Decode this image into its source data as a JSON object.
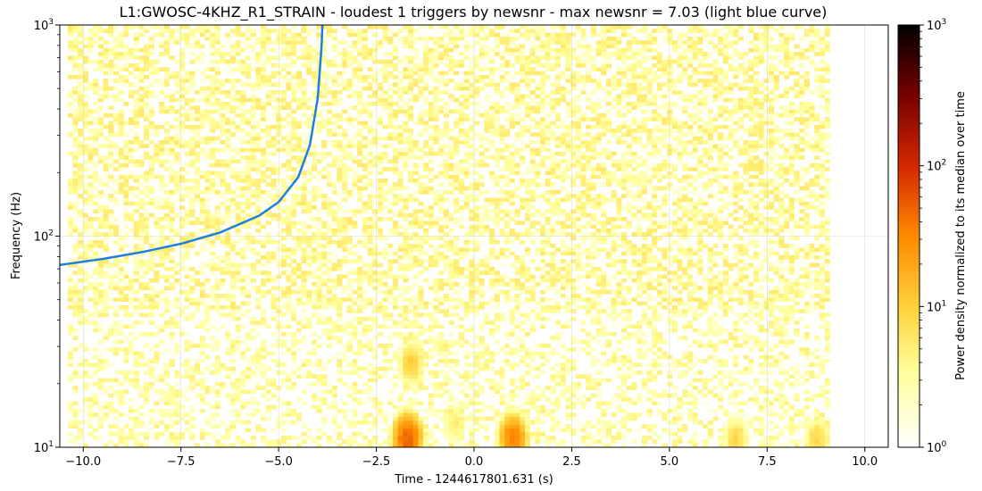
{
  "chart_data": {
    "type": "heatmap",
    "title": "L1:GWOSC-4KHZ_R1_STRAIN - loudest 1 triggers by newsnr - max newsnr = 7.03 (light blue curve)",
    "xlabel": "Time - 1244617801.631 (s)",
    "ylabel": "Frequency (Hz)",
    "colorbar_label": "Power density normalized to its median over time",
    "xlim": [
      -10.6,
      10.6
    ],
    "ylim": [
      10,
      1000
    ],
    "yscale": "log",
    "x_ticks": [
      -10.0,
      -7.5,
      -5.0,
      -2.5,
      0.0,
      2.5,
      5.0,
      7.5,
      10.0
    ],
    "x_tick_labels": [
      "−10.0",
      "−7.5",
      "−5.0",
      "−2.5",
      "0.0",
      "2.5",
      "5.0",
      "7.5",
      "10.0"
    ],
    "y_tick_labels": [
      {
        "base": "10",
        "exp": "1",
        "value": 10
      },
      {
        "base": "10",
        "exp": "2",
        "value": 100
      },
      {
        "base": "10",
        "exp": "3",
        "value": 1000
      }
    ],
    "colorbar_scale": "log",
    "colorbar_range": [
      1,
      1000
    ],
    "colorbar_tick_labels": [
      {
        "base": "10",
        "exp": "0",
        "value": 1
      },
      {
        "base": "10",
        "exp": "1",
        "value": 10
      },
      {
        "base": "10",
        "exp": "2",
        "value": 100
      },
      {
        "base": "10",
        "exp": "3",
        "value": 1000
      }
    ],
    "colormap": "afmhot_r",
    "grid": true,
    "data_time_range": [
      -10.4,
      9.1
    ],
    "hot_spots": [
      {
        "t": -1.7,
        "f": 11,
        "power": 60
      },
      {
        "t": 1.0,
        "f": 11,
        "power": 40
      },
      {
        "t": -1.6,
        "f": 25,
        "power": 12
      },
      {
        "t": 6.7,
        "f": 11,
        "power": 10
      },
      {
        "t": 8.8,
        "f": 11,
        "power": 10
      },
      {
        "t": -0.5,
        "f": 13,
        "power": 6
      }
    ],
    "trigger_curve": {
      "color": "#1f7fe0",
      "description": "light blue curve",
      "t_coalescence": -3.85,
      "points": [
        {
          "t": -10.6,
          "f": 73
        },
        {
          "t": -9.5,
          "f": 78
        },
        {
          "t": -8.5,
          "f": 84
        },
        {
          "t": -7.5,
          "f": 92
        },
        {
          "t": -6.5,
          "f": 104
        },
        {
          "t": -5.5,
          "f": 125
        },
        {
          "t": -5.0,
          "f": 145
        },
        {
          "t": -4.5,
          "f": 190
        },
        {
          "t": -4.2,
          "f": 270
        },
        {
          "t": -4.0,
          "f": 450
        },
        {
          "t": -3.9,
          "f": 800
        },
        {
          "t": -3.88,
          "f": 1000
        }
      ]
    }
  }
}
